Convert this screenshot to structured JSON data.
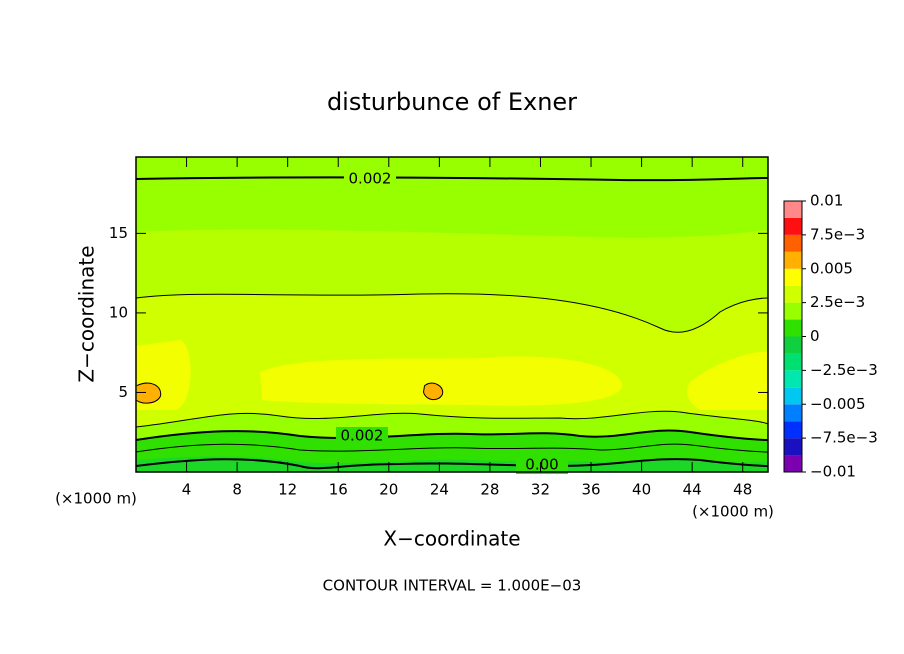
{
  "chart_data": {
    "type": "contour",
    "title": "disturbunce of Exner",
    "xlabel": "X−coordinate",
    "ylabel": "Z−coordinate",
    "axis_unit": "(×1000 m)",
    "footnote": "CONTOUR INTERVAL = 1.000E−03",
    "xlim": [
      0,
      50
    ],
    "xticks": [
      4,
      8,
      12,
      16,
      20,
      24,
      28,
      32,
      36,
      40,
      44,
      48
    ],
    "ylim": [
      0,
      19.8
    ],
    "yticks": [
      5,
      10,
      15
    ],
    "contour_labels": [
      0.002,
      0.002,
      {
        "value": 0,
        "label": "0.00"
      }
    ],
    "colorbar": {
      "lim": [
        -0.01,
        0.01
      ],
      "colors": [
        "#7a00b0",
        "#1a10c0",
        "#0030ff",
        "#0080ff",
        "#00c8f0",
        "#00e8b0",
        "#00e070",
        "#10d040",
        "#30e000",
        "#98ff00",
        "#d0ff00",
        "#ffff00",
        "#ffb000",
        "#ff6000",
        "#ff1010",
        "#ff8888"
      ],
      "ticks": [
        0.01,
        {
          "value": 0.0075,
          "label": "7.5e−3"
        },
        0.005,
        {
          "value": 0.0025,
          "label": "2.5e−3"
        },
        0,
        {
          "value": -0.0025,
          "label": "−2.5e−3"
        },
        {
          "value": -0.005,
          "label": "−0.005"
        },
        {
          "value": -0.0075,
          "label": "−7.5e−3"
        },
        {
          "value": -0.01,
          "label": "−0.01"
        }
      ]
    }
  }
}
